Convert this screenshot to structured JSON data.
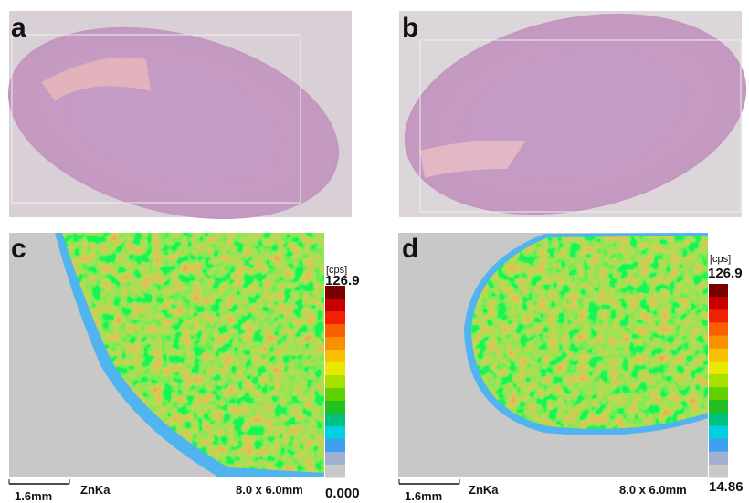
{
  "panels": [
    {
      "label": "a"
    },
    {
      "label": "b"
    },
    {
      "label": "c",
      "unit": "[cps]",
      "max": "126.9",
      "min": "0.000",
      "scale_bar": "1.6mm",
      "element": "ZnKa",
      "size": "8.0 x 6.0mm"
    },
    {
      "label": "d",
      "unit": "[cps]",
      "max": "126.9",
      "min": "14.86",
      "scale_bar": "1.6mm",
      "element": "ZnKa",
      "size": "8.0 x 6.0mm"
    }
  ]
}
